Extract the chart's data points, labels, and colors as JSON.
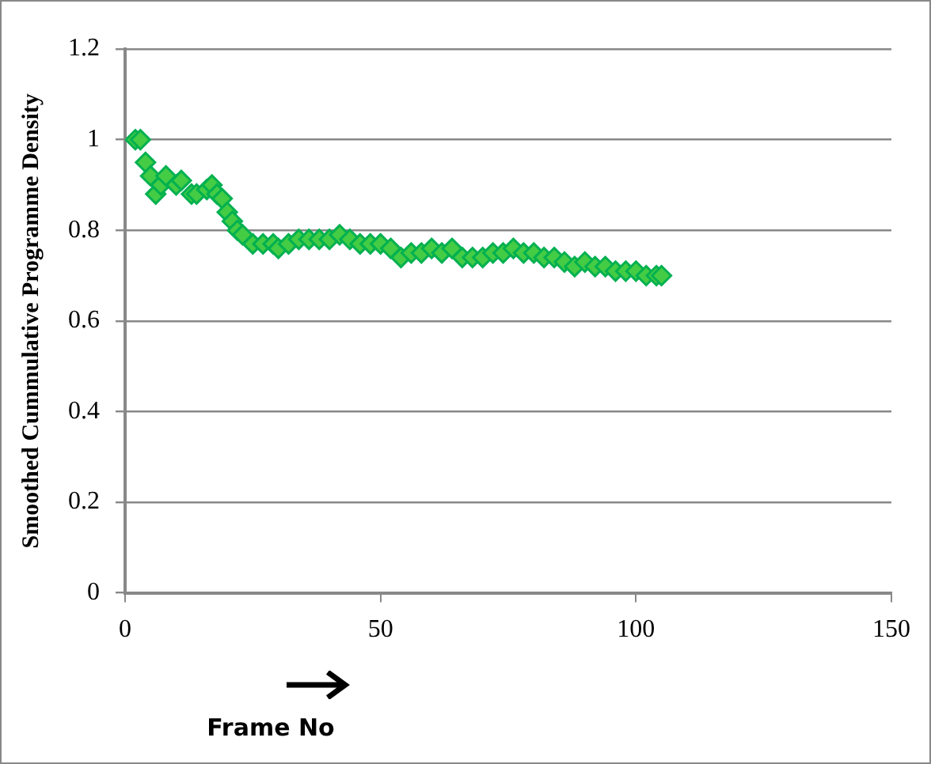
{
  "chart_data": {
    "type": "scatter",
    "ylabel": "Smoothed Cummulative Programme Density",
    "xlabel": "Frame  No",
    "xlim": [
      0,
      150
    ],
    "xticks": [
      0,
      50,
      100,
      150
    ],
    "ylim": [
      0,
      1.2
    ],
    "yticks": [
      0,
      0.2,
      0.4,
      0.6,
      0.8,
      1,
      1.2
    ],
    "grid": "y",
    "marker": "diamond",
    "series": [
      {
        "color": "#00b050",
        "x": [
          2,
          3,
          4,
          5,
          6,
          7,
          8,
          10,
          11,
          13,
          14,
          16,
          17,
          18,
          19,
          20,
          21,
          22,
          23,
          25,
          27,
          29,
          30,
          32,
          34,
          36,
          38,
          40,
          42,
          44,
          46,
          48,
          50,
          52,
          54,
          56,
          58,
          60,
          62,
          64,
          66,
          68,
          70,
          72,
          74,
          76,
          78,
          80,
          82,
          84,
          86,
          88,
          90,
          92,
          94,
          96,
          98,
          100,
          102,
          104,
          105
        ],
        "values": [
          1.0,
          1.0,
          0.95,
          0.92,
          0.88,
          0.9,
          0.92,
          0.9,
          0.91,
          0.88,
          0.88,
          0.89,
          0.9,
          0.88,
          0.87,
          0.84,
          0.82,
          0.8,
          0.79,
          0.77,
          0.77,
          0.77,
          0.76,
          0.77,
          0.78,
          0.78,
          0.78,
          0.78,
          0.79,
          0.78,
          0.77,
          0.77,
          0.77,
          0.76,
          0.74,
          0.75,
          0.75,
          0.76,
          0.75,
          0.76,
          0.74,
          0.74,
          0.74,
          0.75,
          0.75,
          0.76,
          0.75,
          0.75,
          0.74,
          0.74,
          0.73,
          0.72,
          0.73,
          0.72,
          0.72,
          0.71,
          0.71,
          0.71,
          0.7,
          0.7,
          0.7
        ]
      }
    ]
  }
}
